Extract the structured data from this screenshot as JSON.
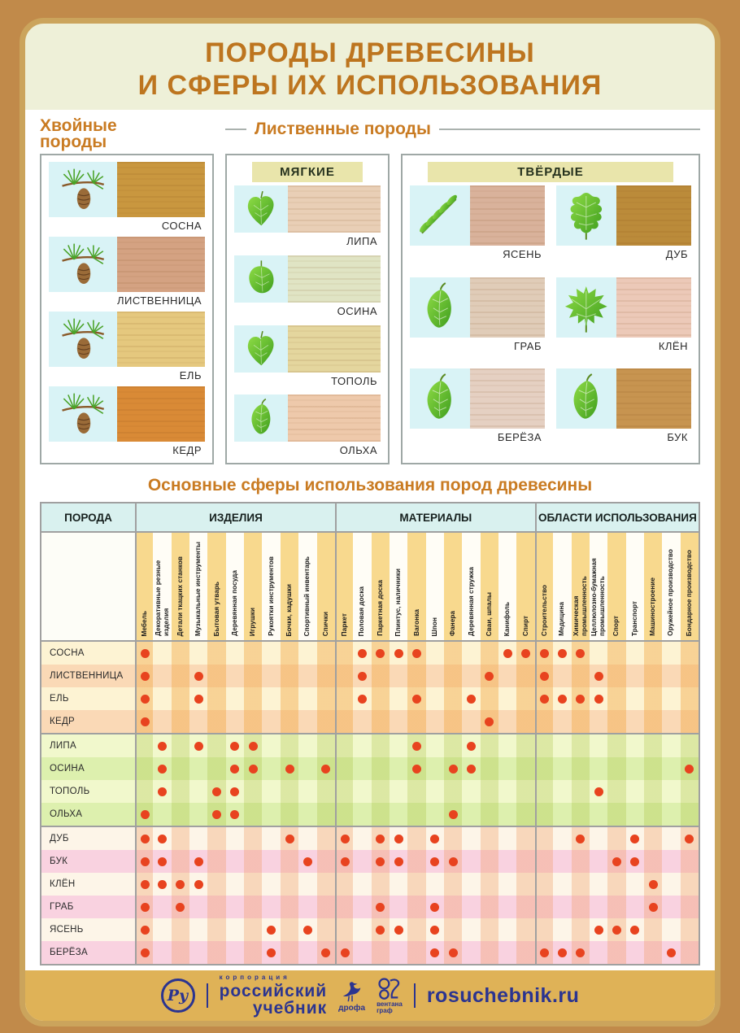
{
  "title": {
    "line1": "ПОРОДЫ ДРЕВЕСИНЫ",
    "line2": "И СФЕРЫ ИХ ИСПОЛЬЗОВАНИЯ"
  },
  "colors": {
    "accent_orange": "#c97b22",
    "dot_red": "#e8431f",
    "footer_gold": "#dfb257",
    "footer_navy": "#2b3490",
    "page_tan": "#c18a4a",
    "stripe_yellow": "#f8d98e"
  },
  "sections": {
    "conifer": {
      "heading_line1": "Хвойные",
      "heading_line2": "породы",
      "species": [
        {
          "name": "СОСНА",
          "icon": "ic-conifer",
          "icon_name": "pine-branch-icon",
          "wood": "#c9973f"
        },
        {
          "name": "ЛИСТВЕННИЦА",
          "icon": "ic-conifer",
          "icon_name": "larch-branch-icon",
          "wood": "#d4a282"
        },
        {
          "name": "ЕЛЬ",
          "icon": "ic-conifer",
          "icon_name": "spruce-branch-icon",
          "wood": "#e5c87e"
        },
        {
          "name": "КЕДР",
          "icon": "ic-conifer",
          "icon_name": "cedar-branch-icon",
          "wood": "#d98a36"
        }
      ]
    },
    "deciduous": {
      "heading": "Лиственные породы",
      "soft": {
        "header": "МЯГКИЕ",
        "species": [
          {
            "name": "ЛИПА",
            "icon": "ic-cordate",
            "icon_name": "linden-leaf-icon",
            "wood": "#e9cfb6"
          },
          {
            "name": "ОСИНА",
            "icon": "ic-round",
            "icon_name": "aspen-leaf-icon",
            "wood": "#e0e4c4"
          },
          {
            "name": "ТОПОЛЬ",
            "icon": "ic-cordate",
            "icon_name": "poplar-leaf-icon",
            "wood": "#e4d69e"
          },
          {
            "name": "ОЛЬХА",
            "icon": "ic-ovate",
            "icon_name": "alder-leaf-icon",
            "wood": "#eec9ab"
          }
        ]
      },
      "hard": {
        "header": "ТВЁРДЫЕ",
        "species": [
          {
            "name": "ЯСЕНЬ",
            "icon": "ic-pinnate",
            "icon_name": "ash-leaf-icon",
            "wood": "#d9b29b"
          },
          {
            "name": "ДУБ",
            "icon": "ic-oak",
            "icon_name": "oak-leaf-icon",
            "wood": "#bb8b3a"
          },
          {
            "name": "ГРАБ",
            "icon": "ic-ovate",
            "icon_name": "hornbeam-leaf-icon",
            "wood": "#e0ccb8"
          },
          {
            "name": "КЛЁН",
            "icon": "ic-maple",
            "icon_name": "maple-leaf-icon",
            "wood": "#ecc9b8"
          },
          {
            "name": "БЕРЁЗА",
            "icon": "ic-ovate",
            "icon_name": "birch-leaf-icon",
            "wood": "#e5d0c2"
          },
          {
            "name": "БУК",
            "icon": "ic-ovate",
            "icon_name": "beech-leaf-icon",
            "wood": "#c79450"
          }
        ]
      }
    }
  },
  "table": {
    "heading": "Основные сферы использования пород древесины",
    "col_header": "ПОРОДА",
    "groups": [
      {
        "label": "ИЗДЕЛИЯ",
        "columns": [
          "Мебель",
          "Декоративные резные изделия",
          "Детали ткацких станков",
          "Музыкальные инструменты",
          "Бытовая утварь",
          "Деревянная посуда",
          "Игрушки",
          "Рукоятки инструментов",
          "Бочки, кадушки",
          "Спортивный инвентарь",
          "Спички"
        ]
      },
      {
        "label": "МАТЕРИАЛЫ",
        "columns": [
          "Паркет",
          "Половая доска",
          "Паркетная доска",
          "Плинтус, наличники",
          "Вагонка",
          "Шпон",
          "Фанера",
          "Деревянная стружка",
          "Сваи, шпалы",
          "Канифоль",
          "Спирт"
        ]
      },
      {
        "label": "ОБЛАСТИ ИСПОЛЬЗОВАНИЯ",
        "columns": [
          "Строительство",
          "Медицина",
          "Химическая промышленность",
          "Целлюлозно-бумажная промышленность",
          "Спорт",
          "Транспорт",
          "Машиностроение",
          "Оружейное производство",
          "Бондарное производство"
        ]
      }
    ],
    "row_groups": [
      {
        "kind": "conifer",
        "rows": [
          {
            "name": "СОСНА",
            "dots": [
              1,
              13,
              14,
              15,
              16,
              21,
              22,
              23,
              24,
              25
            ]
          },
          {
            "name": "ЛИСТВЕННИЦА",
            "dots": [
              1,
              4,
              13,
              20,
              23,
              26
            ]
          },
          {
            "name": "ЕЛЬ",
            "dots": [
              1,
              4,
              13,
              16,
              19,
              23,
              24,
              25,
              26
            ]
          },
          {
            "name": "КЕДР",
            "dots": [
              1,
              20
            ]
          }
        ]
      },
      {
        "kind": "soft",
        "rows": [
          {
            "name": "ЛИПА",
            "dots": [
              2,
              4,
              6,
              7,
              16,
              19
            ]
          },
          {
            "name": "ОСИНА",
            "dots": [
              2,
              6,
              7,
              9,
              11,
              16,
              18,
              19,
              31
            ]
          },
          {
            "name": "ТОПОЛЬ",
            "dots": [
              2,
              5,
              6,
              26
            ]
          },
          {
            "name": "ОЛЬХА",
            "dots": [
              1,
              5,
              6,
              18
            ]
          }
        ]
      },
      {
        "kind": "hard",
        "rows": [
          {
            "name": "ДУБ",
            "dots": [
              1,
              2,
              9,
              12,
              14,
              15,
              17,
              25,
              28,
              31
            ]
          },
          {
            "name": "БУК",
            "dots": [
              1,
              2,
              4,
              10,
              12,
              14,
              15,
              17,
              18,
              27,
              28
            ]
          },
          {
            "name": "КЛЁН",
            "dots": [
              1,
              2,
              3,
              4,
              29
            ]
          },
          {
            "name": "ГРАБ",
            "dots": [
              1,
              3,
              14,
              17,
              29
            ]
          },
          {
            "name": "ЯСЕНЬ",
            "dots": [
              1,
              8,
              10,
              14,
              15,
              17,
              26,
              27,
              28
            ]
          },
          {
            "name": "БЕРЁЗА",
            "dots": [
              1,
              8,
              11,
              12,
              17,
              18,
              23,
              24,
              25,
              30
            ]
          }
        ]
      }
    ]
  },
  "footer": {
    "monogram": "Ру",
    "corp_small": "корпорация",
    "brand_line1": "российский",
    "brand_line2": "учебник",
    "drofa": "дрофа",
    "ventana_line1": "вентана",
    "ventana_line2": "граф",
    "site": "rosuchebnik.ru"
  }
}
